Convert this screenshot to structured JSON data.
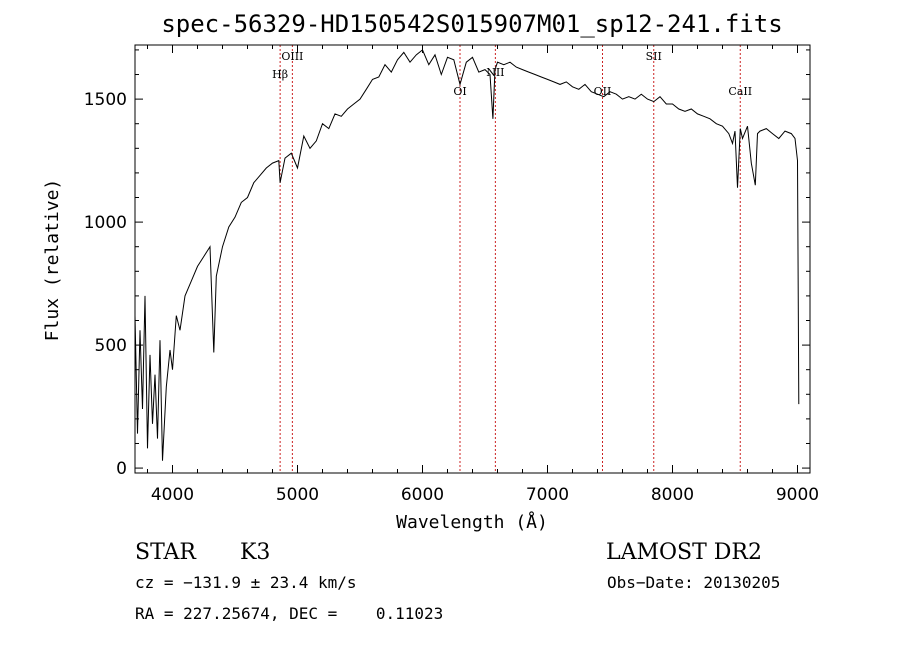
{
  "chart_data": {
    "type": "line",
    "title": "spec-56329-HD150542S015907M01_sp12-241.fits",
    "xlabel": "Wavelength (Å)",
    "ylabel": "Flux (relative)",
    "xlim": [
      3700,
      9100
    ],
    "ylim": [
      -20,
      1720
    ],
    "x_ticks": [
      4000,
      5000,
      6000,
      7000,
      8000,
      9000
    ],
    "y_ticks": [
      0,
      500,
      1000,
      1500
    ],
    "grid": false,
    "series": [
      {
        "x": [
          3700,
          3720,
          3740,
          3760,
          3780,
          3800,
          3820,
          3840,
          3860,
          3880,
          3900,
          3920,
          3950,
          3980,
          4000,
          4030,
          4060,
          4100,
          4150,
          4200,
          4250,
          4300,
          4330,
          4350,
          4400,
          4450,
          4500,
          4550,
          4600,
          4650,
          4700,
          4750,
          4800,
          4850,
          4861,
          4900,
          4950,
          5000,
          5050,
          5100,
          5150,
          5200,
          5250,
          5300,
          5350,
          5400,
          5450,
          5500,
          5550,
          5600,
          5650,
          5700,
          5750,
          5800,
          5850,
          5900,
          5950,
          6000,
          6050,
          6100,
          6150,
          6200,
          6250,
          6300,
          6350,
          6400,
          6450,
          6500,
          6540,
          6563,
          6580,
          6600,
          6650,
          6700,
          6750,
          6800,
          6850,
          6900,
          6950,
          7000,
          7050,
          7100,
          7150,
          7200,
          7250,
          7300,
          7350,
          7400,
          7450,
          7500,
          7550,
          7600,
          7650,
          7700,
          7750,
          7800,
          7850,
          7900,
          7950,
          8000,
          8050,
          8100,
          8150,
          8200,
          8250,
          8300,
          8350,
          8400,
          8450,
          8480,
          8500,
          8520,
          8542,
          8560,
          8600,
          8630,
          8662,
          8680,
          8700,
          8750,
          8800,
          8850,
          8900,
          8950,
          8980,
          9000,
          9005,
          9010
        ],
        "y": [
          620,
          140,
          560,
          240,
          700,
          80,
          460,
          180,
          380,
          120,
          520,
          30,
          330,
          480,
          400,
          620,
          560,
          700,
          760,
          820,
          860,
          900,
          470,
          780,
          900,
          980,
          1020,
          1080,
          1100,
          1160,
          1190,
          1220,
          1240,
          1250,
          1160,
          1260,
          1280,
          1220,
          1350,
          1300,
          1330,
          1400,
          1380,
          1440,
          1430,
          1460,
          1480,
          1500,
          1540,
          1580,
          1590,
          1640,
          1610,
          1660,
          1690,
          1650,
          1680,
          1700,
          1640,
          1680,
          1600,
          1670,
          1660,
          1560,
          1650,
          1670,
          1610,
          1620,
          1600,
          1420,
          1620,
          1650,
          1640,
          1650,
          1630,
          1620,
          1610,
          1600,
          1590,
          1580,
          1570,
          1560,
          1570,
          1550,
          1540,
          1560,
          1530,
          1520,
          1510,
          1530,
          1520,
          1500,
          1510,
          1500,
          1520,
          1500,
          1490,
          1510,
          1480,
          1480,
          1460,
          1450,
          1460,
          1440,
          1430,
          1420,
          1400,
          1390,
          1360,
          1320,
          1370,
          1140,
          1380,
          1340,
          1390,
          1240,
          1150,
          1360,
          1370,
          1380,
          1360,
          1340,
          1370,
          1360,
          1340,
          1250,
          800,
          260
        ]
      }
    ],
    "lines": [
      {
        "label": "Hβ",
        "x": 4861
      },
      {
        "label": "OIII",
        "x": 4959
      },
      {
        "label": "OI",
        "x": 6300
      },
      {
        "label": "NII",
        "x": 6583
      },
      {
        "label": "OII",
        "x": 7440
      },
      {
        "label": "SII",
        "x": 7850
      },
      {
        "label": "CaII",
        "x": 8542
      }
    ]
  },
  "info": {
    "object_type": "STAR",
    "subclass": "K3",
    "survey": "LAMOST DR2",
    "cz": "cz = −131.9 ± 23.4 km/s",
    "obs_date": "Obs−Date: 20130205",
    "coords": "RA = 227.25674, DEC =    0.11023"
  },
  "colors": {
    "line_markers": "#cc2222",
    "spectrum": "#000000"
  }
}
